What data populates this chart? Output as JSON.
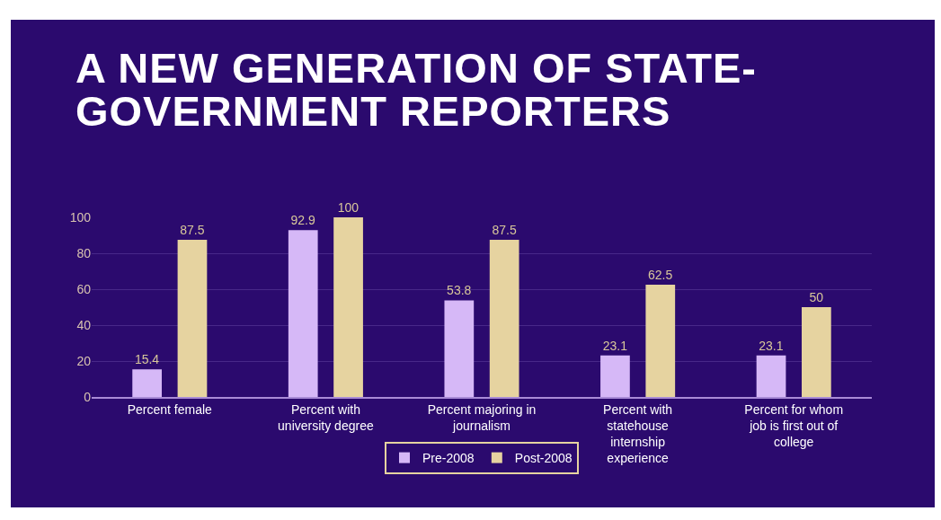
{
  "chart_data": {
    "type": "bar",
    "title": "A NEW GENERATION OF STATE-GOVERNMENT REPORTERS",
    "categories": [
      "Percent female",
      "Percent with university degree",
      "Percent majoring in journalism",
      "Percent with statehouse internship experience",
      "Percent for whom job is first out of college"
    ],
    "series": [
      {
        "name": "Pre-2008",
        "color": "#d6b8f7",
        "values": [
          15.4,
          92.9,
          53.8,
          23.1,
          23.1
        ]
      },
      {
        "name": "Post-2008",
        "color": "#e6d3a0",
        "values": [
          87.5,
          100,
          87.5,
          62.5,
          50
        ]
      }
    ],
    "ylim": [
      0,
      100
    ],
    "yticks": [
      0,
      20,
      40,
      60,
      80,
      100
    ],
    "grid": "y",
    "legend": "bottom",
    "data_labels": true
  }
}
